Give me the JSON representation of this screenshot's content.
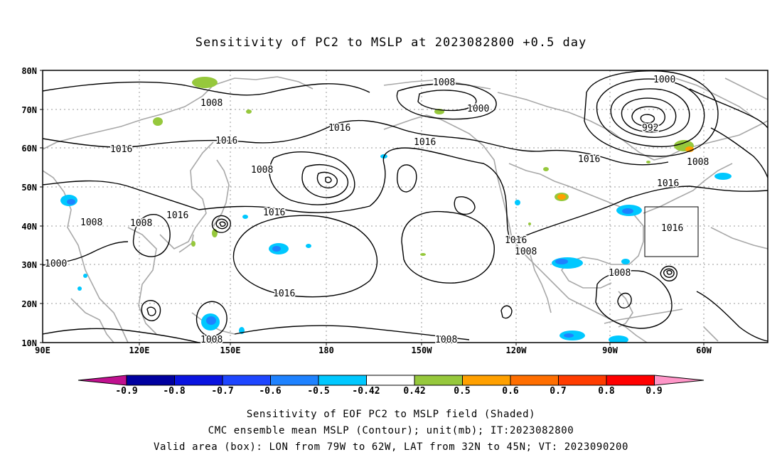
{
  "title": "Sensitivity of PC2 to MSLP at 2023082800 +0.5 day",
  "map": {
    "lat_ticks": [
      "80N",
      "70N",
      "60N",
      "50N",
      "40N",
      "30N",
      "20N",
      "10N"
    ],
    "lon_ticks": [
      "90E",
      "120E",
      "150E",
      "180",
      "150W",
      "120W",
      "90W",
      "60W"
    ],
    "contour_labels": [
      {
        "id": "c1",
        "text": "1008"
      },
      {
        "id": "c2",
        "text": "1016"
      },
      {
        "id": "c3",
        "text": "1016"
      },
      {
        "id": "c4",
        "text": "1016"
      },
      {
        "id": "c5",
        "text": "1008"
      },
      {
        "id": "c6",
        "text": "1008"
      },
      {
        "id": "c7",
        "text": "1000"
      },
      {
        "id": "c8",
        "text": "1016"
      },
      {
        "id": "c9",
        "text": "1008"
      },
      {
        "id": "c10",
        "text": "1016"
      },
      {
        "id": "c11",
        "text": "1016"
      },
      {
        "id": "c12",
        "text": "1008"
      },
      {
        "id": "c13",
        "text": "1000"
      },
      {
        "id": "c14",
        "text": "1016"
      },
      {
        "id": "c15",
        "text": "1016"
      },
      {
        "id": "c16",
        "text": "1016"
      },
      {
        "id": "c17",
        "text": "1008"
      },
      {
        "id": "c18",
        "text": "1016"
      },
      {
        "id": "c19",
        "text": "1000"
      },
      {
        "id": "c20",
        "text": "992"
      },
      {
        "id": "c21",
        "text": "1008"
      },
      {
        "id": "c22",
        "text": "1016"
      },
      {
        "id": "c23",
        "text": "1008"
      },
      {
        "id": "c24",
        "text": "1016"
      },
      {
        "id": "c25",
        "text": "1008"
      },
      {
        "id": "c26",
        "text": "1008"
      }
    ],
    "valid_box": {
      "lon_range": "79W to 62W",
      "lat_range": "32N to 45N"
    }
  },
  "colorbar": {
    "labels": [
      "-0.9",
      "-0.8",
      "-0.7",
      "-0.6",
      "-0.5",
      "-0.42",
      "0.42",
      "0.5",
      "0.6",
      "0.7",
      "0.8",
      "0.9"
    ],
    "colors": {
      "low_tip": "#c0118f",
      "b1": "#0000a0",
      "b2": "#0a14e0",
      "b3": "#1e46ff",
      "b4": "#1e82ff",
      "b5": "#00c8ff",
      "b6": "#ffffff",
      "b7": "#96c83c",
      "b8": "#ffa000",
      "b9": "#ff6e00",
      "b10": "#ff3c00",
      "b11": "#ff0000",
      "high_tip": "#ff96c8"
    }
  },
  "captions": [
    "Sensitivity of EOF PC2 to MSLP field (Shaded)",
    "CMC ensemble mean MSLP (Contour); unit(mb); IT:2023082800",
    "Valid area (box): LON from 79W to 62W, LAT from 32N to 45N; VT: 2023090200"
  ]
}
